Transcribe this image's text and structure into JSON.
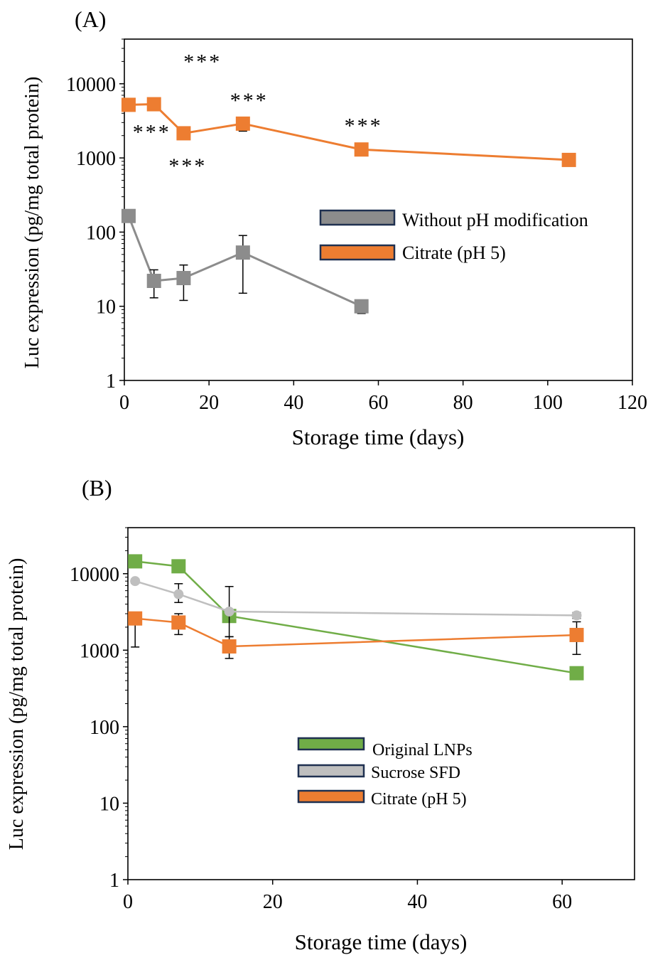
{
  "chart_data": [
    {
      "panel_label": "(A)",
      "type": "line",
      "xlabel": "Storage time (days)",
      "ylabel": "Luc expression (pg/mg total protein)",
      "xlim": [
        0,
        120
      ],
      "ylim": [
        1,
        40000
      ],
      "y_scale": "log",
      "xticks": [
        "0",
        "20",
        "40",
        "60",
        "80",
        "100",
        "120"
      ],
      "yticks": [
        "1",
        "10",
        "100",
        "1000",
        "10000"
      ],
      "legend_position": "center-right",
      "series": [
        {
          "name": "Without pH modification",
          "color": "#8c8c8c",
          "x": [
            1,
            7,
            14,
            28,
            56
          ],
          "y": [
            165,
            22,
            24,
            53,
            10
          ],
          "err_low": [
            150,
            13,
            12,
            15,
            8
          ],
          "err_high": [
            180,
            31,
            36,
            90,
            11
          ]
        },
        {
          "name": "Citrate (pH 5)",
          "color": "#ed7d31",
          "x": [
            1,
            7,
            14,
            28,
            56,
            105
          ],
          "y": [
            5200,
            5300,
            2150,
            2900,
            1300,
            940
          ],
          "err_low": [
            5100,
            5000,
            2050,
            2300,
            1250,
            900
          ],
          "err_high": [
            5400,
            5700,
            2250,
            3500,
            1350,
            980
          ]
        }
      ],
      "annotations": [
        {
          "text": "***",
          "x": 18.5,
          "y": 16000
        },
        {
          "text": "***",
          "x": 6.5,
          "y": 1800
        },
        {
          "text": "***",
          "x": 15,
          "y": 630
        },
        {
          "text": "***",
          "x": 29.5,
          "y": 4800
        },
        {
          "text": "***",
          "x": 56.5,
          "y": 2200
        }
      ]
    },
    {
      "panel_label": "(B)",
      "type": "line",
      "xlabel": "Storage time (days)",
      "ylabel": "Luc expression (pg/mg total protein)",
      "xlim": [
        0,
        70
      ],
      "ylim": [
        1,
        40000
      ],
      "y_scale": "log",
      "xticks": [
        "0",
        "20",
        "40",
        "60"
      ],
      "yticks": [
        "1",
        "10",
        "100",
        "1000",
        "10000"
      ],
      "legend_position": "center",
      "series": [
        {
          "name": "Original LNPs",
          "color": "#70ad47",
          "marker": "square",
          "x": [
            1,
            7,
            14,
            62
          ],
          "y": [
            14500,
            12500,
            2800,
            500
          ],
          "err_low": [
            14000,
            11800,
            2500,
            450
          ],
          "err_high": [
            15200,
            13500,
            3200,
            580
          ]
        },
        {
          "name": "Sucrose SFD",
          "color": "#bfbfbf",
          "marker": "circle",
          "x": [
            1,
            7,
            14,
            62
          ],
          "y": [
            8000,
            5400,
            3200,
            2850
          ],
          "err_low": [
            7500,
            4200,
            1500,
            2600
          ],
          "err_high": [
            8500,
            7400,
            6800,
            3100
          ]
        },
        {
          "name": "Citrate (pH 5)",
          "color": "#ed7d31",
          "marker": "square",
          "x": [
            1,
            7,
            14,
            62
          ],
          "y": [
            2600,
            2300,
            1120,
            1580
          ],
          "err_low": [
            1100,
            1600,
            780,
            880
          ],
          "err_high": [
            3000,
            3000,
            1500,
            2350
          ]
        }
      ]
    }
  ]
}
